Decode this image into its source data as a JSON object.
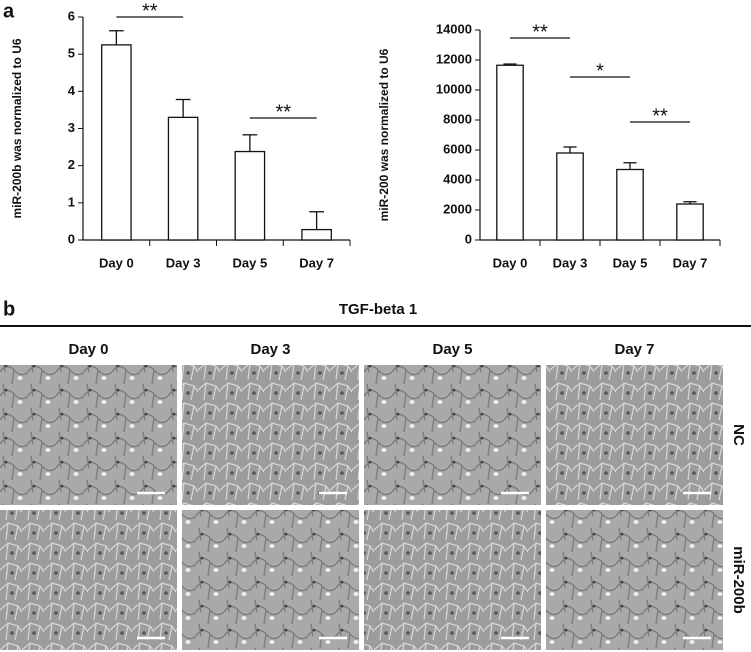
{
  "panel_labels": [
    "a",
    "b"
  ],
  "chart_data": [
    {
      "type": "bar",
      "ylabel": "miR-200b was normalized to U6",
      "categories": [
        "Day 0",
        "Day 3",
        "Day 5",
        "Day 7"
      ],
      "values": [
        5.25,
        3.3,
        2.38,
        0.28
      ],
      "errors": [
        0.38,
        0.48,
        0.45,
        0.48
      ],
      "color": "#ffffff",
      "ylim": [
        0,
        6
      ],
      "yticks": [
        0,
        1,
        2,
        3,
        4,
        5,
        6
      ],
      "annotations": [
        {
          "text": "**",
          "from": "Day 0",
          "to": "Day 3"
        },
        {
          "text": "**",
          "from": "Day 5",
          "to": "Day 7"
        }
      ]
    },
    {
      "type": "bar",
      "ylabel": "miR-200 was normalized to U6",
      "categories": [
        "Day 0",
        "Day 3",
        "Day 5",
        "Day 7"
      ],
      "values": [
        11650,
        5800,
        4700,
        2400
      ],
      "errors": [
        80,
        400,
        450,
        150
      ],
      "color": "#ffffff",
      "ylim": [
        0,
        14000
      ],
      "yticks": [
        0,
        2000,
        4000,
        6000,
        8000,
        10000,
        12000,
        14000
      ],
      "annotations": [
        {
          "text": "**",
          "from": "Day 0",
          "to": "Day 3"
        },
        {
          "text": "*",
          "from": "Day 3",
          "to": "Day 5"
        },
        {
          "text": "**",
          "from": "Day 5",
          "to": "Day 7"
        }
      ]
    }
  ],
  "micrographs": {
    "title": "TGF-beta 1",
    "columns": [
      "Day 0",
      "Day 3",
      "Day 5",
      "Day 7"
    ],
    "rows": [
      "NC",
      "miR-200b"
    ]
  }
}
